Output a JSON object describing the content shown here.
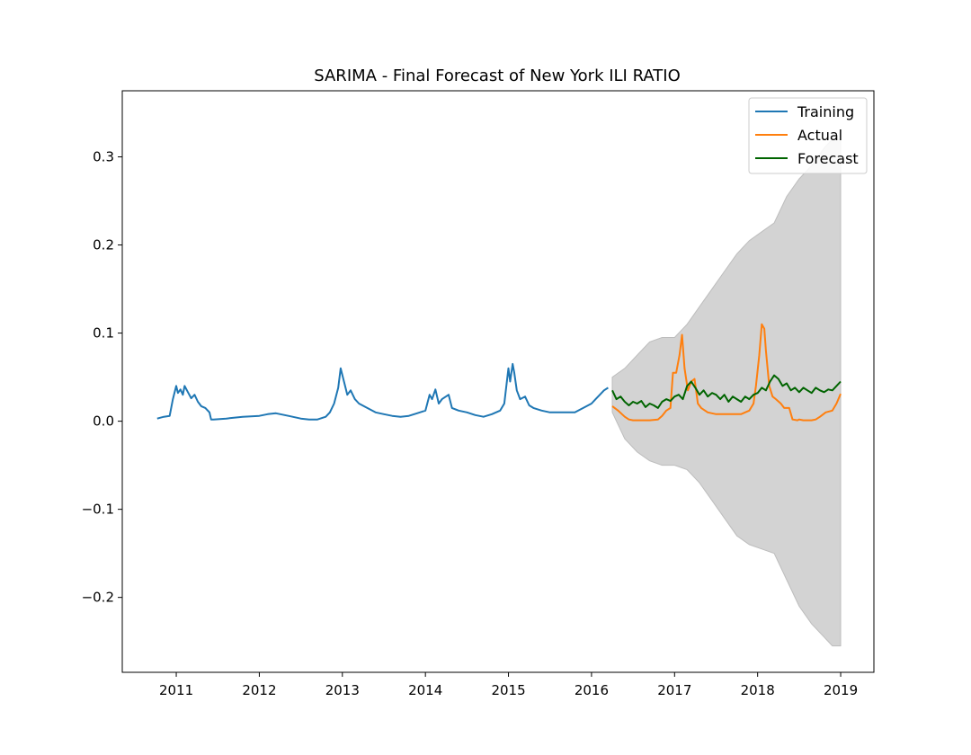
{
  "chart_data": {
    "type": "line",
    "title": "SARIMA - Final Forecast of New York ILI RATIO",
    "xlabel": "",
    "ylabel": "",
    "x_unit": "year",
    "xlim": [
      2010.35,
      2019.4
    ],
    "ylim": [
      -0.285,
      0.375
    ],
    "xticks": [
      2011,
      2012,
      2013,
      2014,
      2015,
      2016,
      2017,
      2018,
      2019
    ],
    "xtick_labels": [
      "2011",
      "2012",
      "2013",
      "2014",
      "2015",
      "2016",
      "2017",
      "2018",
      "2019"
    ],
    "yticks": [
      -0.2,
      -0.1,
      0.0,
      0.1,
      0.2,
      0.3
    ],
    "ytick_labels": [
      "−0.2",
      "−0.1",
      "0.0",
      "0.1",
      "0.2",
      "0.3"
    ],
    "grid": false,
    "legend_position": "top-right",
    "colors": {
      "training": "#1f77b4",
      "actual": "#ff7f0e",
      "forecast": "#006400",
      "confidence_band": "#d3d3d3"
    },
    "series": [
      {
        "name": "Training",
        "color": "#1f77b4",
        "x": [
          2010.77,
          2010.85,
          2010.92,
          2010.96,
          2011.0,
          2011.02,
          2011.05,
          2011.08,
          2011.1,
          2011.14,
          2011.18,
          2011.22,
          2011.26,
          2011.3,
          2011.35,
          2011.4,
          2011.42,
          2011.45,
          2011.6,
          2011.8,
          2012.0,
          2012.1,
          2012.2,
          2012.35,
          2012.5,
          2012.6,
          2012.7,
          2012.8,
          2012.85,
          2012.9,
          2012.95,
          2012.98,
          2013.02,
          2013.06,
          2013.1,
          2013.15,
          2013.2,
          2013.3,
          2013.4,
          2013.5,
          2013.6,
          2013.7,
          2013.8,
          2013.9,
          2014.0,
          2014.05,
          2014.08,
          2014.12,
          2014.16,
          2014.2,
          2014.28,
          2014.32,
          2014.4,
          2014.5,
          2014.6,
          2014.7,
          2014.8,
          2014.9,
          2014.95,
          2015.0,
          2015.02,
          2015.05,
          2015.07,
          2015.1,
          2015.14,
          2015.2,
          2015.25,
          2015.3,
          2015.4,
          2015.5,
          2015.6,
          2015.7,
          2015.8,
          2015.9,
          2016.0,
          2016.05,
          2016.1,
          2016.15,
          2016.2
        ],
        "values": [
          0.003,
          0.005,
          0.006,
          0.025,
          0.04,
          0.032,
          0.036,
          0.03,
          0.04,
          0.033,
          0.026,
          0.03,
          0.022,
          0.017,
          0.015,
          0.01,
          0.002,
          0.002,
          0.003,
          0.005,
          0.006,
          0.008,
          0.009,
          0.006,
          0.003,
          0.002,
          0.002,
          0.005,
          0.01,
          0.02,
          0.038,
          0.06,
          0.045,
          0.03,
          0.035,
          0.025,
          0.02,
          0.015,
          0.01,
          0.008,
          0.006,
          0.005,
          0.006,
          0.009,
          0.012,
          0.03,
          0.025,
          0.036,
          0.02,
          0.025,
          0.03,
          0.015,
          0.012,
          0.01,
          0.007,
          0.005,
          0.008,
          0.012,
          0.02,
          0.06,
          0.045,
          0.065,
          0.055,
          0.035,
          0.025,
          0.028,
          0.018,
          0.015,
          0.012,
          0.01,
          0.01,
          0.01,
          0.01,
          0.015,
          0.02,
          0.025,
          0.03,
          0.035,
          0.038
        ]
      },
      {
        "name": "Actual",
        "color": "#ff7f0e",
        "x": [
          2016.25,
          2016.32,
          2016.4,
          2016.45,
          2016.5,
          2016.6,
          2016.7,
          2016.8,
          2016.85,
          2016.9,
          2016.95,
          2016.98,
          2017.02,
          2017.06,
          2017.09,
          2017.12,
          2017.16,
          2017.2,
          2017.24,
          2017.28,
          2017.32,
          2017.4,
          2017.5,
          2017.6,
          2017.7,
          2017.8,
          2017.85,
          2017.9,
          2017.95,
          2017.98,
          2018.02,
          2018.05,
          2018.08,
          2018.1,
          2018.14,
          2018.18,
          2018.22,
          2018.28,
          2018.32,
          2018.38,
          2018.42,
          2018.48,
          2018.5,
          2018.55,
          2018.6,
          2018.65,
          2018.7,
          2018.75,
          2018.82,
          2018.9,
          2018.95,
          2019.0
        ],
        "values": [
          0.017,
          0.012,
          0.005,
          0.002,
          0.001,
          0.001,
          0.001,
          0.002,
          0.006,
          0.012,
          0.015,
          0.055,
          0.055,
          0.075,
          0.098,
          0.06,
          0.035,
          0.045,
          0.048,
          0.02,
          0.015,
          0.01,
          0.008,
          0.008,
          0.008,
          0.008,
          0.01,
          0.012,
          0.02,
          0.04,
          0.075,
          0.11,
          0.105,
          0.08,
          0.04,
          0.028,
          0.025,
          0.02,
          0.015,
          0.015,
          0.002,
          0.001,
          0.002,
          0.001,
          0.001,
          0.001,
          0.002,
          0.005,
          0.01,
          0.012,
          0.02,
          0.031
        ]
      },
      {
        "name": "Forecast",
        "color": "#006400",
        "x": [
          2016.25,
          2016.3,
          2016.35,
          2016.4,
          2016.45,
          2016.5,
          2016.55,
          2016.6,
          2016.65,
          2016.7,
          2016.75,
          2016.8,
          2016.85,
          2016.9,
          2016.95,
          2017.0,
          2017.05,
          2017.1,
          2017.15,
          2017.2,
          2017.25,
          2017.3,
          2017.35,
          2017.4,
          2017.45,
          2017.5,
          2017.55,
          2017.6,
          2017.65,
          2017.7,
          2017.75,
          2017.8,
          2017.85,
          2017.9,
          2017.95,
          2018.0,
          2018.05,
          2018.1,
          2018.15,
          2018.2,
          2018.25,
          2018.3,
          2018.35,
          2018.4,
          2018.45,
          2018.5,
          2018.55,
          2018.6,
          2018.65,
          2018.7,
          2018.75,
          2018.8,
          2018.85,
          2018.9,
          2018.95,
          2019.0
        ],
        "values": [
          0.035,
          0.025,
          0.028,
          0.022,
          0.018,
          0.022,
          0.02,
          0.023,
          0.016,
          0.02,
          0.018,
          0.015,
          0.022,
          0.025,
          0.023,
          0.028,
          0.03,
          0.025,
          0.04,
          0.045,
          0.038,
          0.03,
          0.035,
          0.028,
          0.032,
          0.03,
          0.025,
          0.03,
          0.022,
          0.028,
          0.025,
          0.022,
          0.028,
          0.025,
          0.03,
          0.032,
          0.038,
          0.035,
          0.045,
          0.052,
          0.048,
          0.04,
          0.043,
          0.035,
          0.038,
          0.033,
          0.038,
          0.035,
          0.032,
          0.038,
          0.035,
          0.033,
          0.036,
          0.035,
          0.04,
          0.045
        ]
      }
    ],
    "confidence_band": {
      "x": [
        2016.25,
        2016.4,
        2016.55,
        2016.7,
        2016.85,
        2017.0,
        2017.15,
        2017.3,
        2017.45,
        2017.6,
        2017.75,
        2017.9,
        2018.05,
        2018.2,
        2018.35,
        2018.5,
        2018.65,
        2018.8,
        2018.9,
        2019.0
      ],
      "lower": [
        0.01,
        -0.02,
        -0.035,
        -0.045,
        -0.05,
        -0.05,
        -0.055,
        -0.07,
        -0.09,
        -0.11,
        -0.13,
        -0.14,
        -0.145,
        -0.15,
        -0.18,
        -0.21,
        -0.23,
        -0.245,
        -0.255,
        -0.255
      ],
      "upper": [
        0.05,
        0.06,
        0.075,
        0.09,
        0.095,
        0.095,
        0.11,
        0.13,
        0.15,
        0.17,
        0.19,
        0.205,
        0.215,
        0.225,
        0.255,
        0.275,
        0.29,
        0.31,
        0.32,
        0.32
      ]
    }
  }
}
